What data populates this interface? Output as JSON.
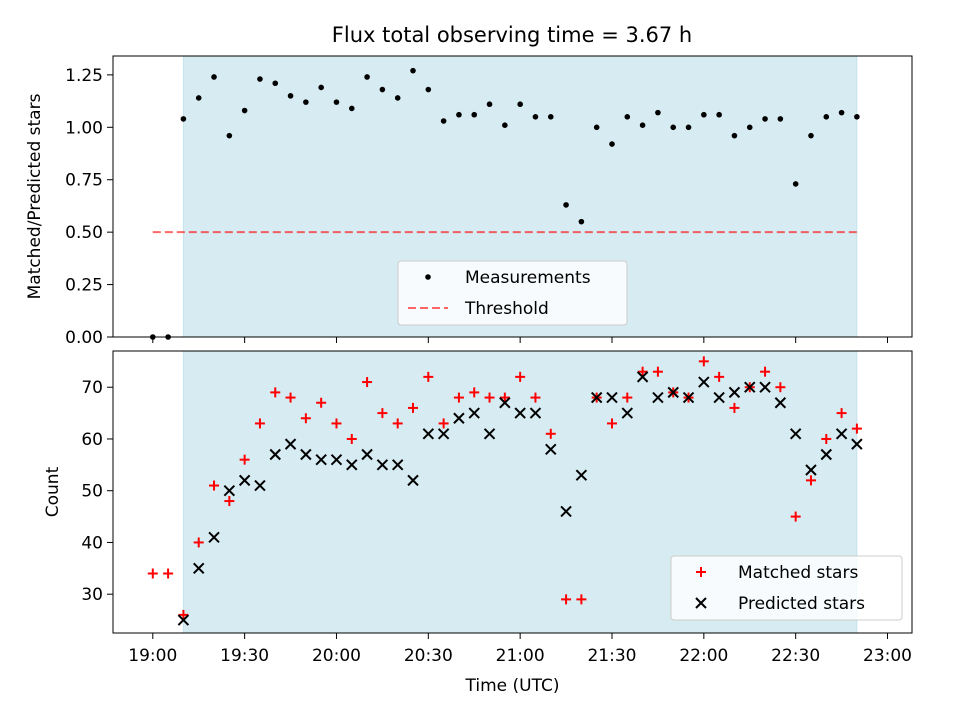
{
  "chart_data": [
    {
      "type": "scatter",
      "title": "Flux total observing time = 3.67 h",
      "xlabel": "",
      "ylabel": "Matched/Predicted stars",
      "ylim": [
        0.0,
        1.34
      ],
      "yticks": [
        "0.00",
        "0.25",
        "0.50",
        "0.75",
        "1.00",
        "1.25"
      ],
      "xlim_minutes": [
        1127,
        1388
      ],
      "x_tick_labels": [],
      "shaded_span": [
        "19:10",
        "22:50"
      ],
      "shade_color": "#add8e6",
      "series": [
        {
          "name": "Measurements",
          "color": "#000000",
          "x": [
            "19:00",
            "19:05",
            "19:10",
            "19:15",
            "19:20",
            "19:25",
            "19:30",
            "19:35",
            "19:40",
            "19:45",
            "19:50",
            "19:55",
            "20:00",
            "20:05",
            "20:10",
            "20:15",
            "20:20",
            "20:25",
            "20:30",
            "20:35",
            "20:40",
            "20:45",
            "20:50",
            "20:55",
            "21:00",
            "21:05",
            "21:10",
            "21:15",
            "21:20",
            "21:25",
            "21:30",
            "21:35",
            "21:40",
            "21:45",
            "21:50",
            "21:55",
            "22:00",
            "22:05",
            "22:10",
            "22:15",
            "22:20",
            "22:25",
            "22:30",
            "22:35",
            "22:40",
            "22:45",
            "22:50"
          ],
          "y": [
            0.0,
            0.0,
            1.04,
            1.14,
            1.24,
            0.96,
            1.08,
            1.23,
            1.21,
            1.15,
            1.12,
            1.19,
            1.12,
            1.09,
            1.24,
            1.18,
            1.14,
            1.27,
            1.18,
            1.03,
            1.06,
            1.06,
            1.11,
            1.01,
            1.11,
            1.05,
            1.05,
            0.63,
            0.55,
            1.0,
            0.92,
            1.05,
            1.01,
            1.07,
            1.0,
            1.0,
            1.06,
            1.06,
            0.96,
            1.0,
            1.04,
            1.04,
            0.73,
            0.96,
            1.05,
            1.07,
            1.05
          ]
        },
        {
          "name": "Threshold",
          "color": "#ff0000",
          "style": "dashed",
          "x": [
            "19:00",
            "22:50"
          ],
          "y": [
            0.5,
            0.5
          ]
        }
      ],
      "legend": "lower-center"
    },
    {
      "type": "scatter",
      "title": "",
      "xlabel": "Time (UTC)",
      "ylabel": "Count",
      "ylim": [
        22.5,
        77
      ],
      "yticks": [
        "30",
        "40",
        "50",
        "60",
        "70"
      ],
      "xlim_minutes": [
        1127,
        1388
      ],
      "x_tick_labels": [
        "19:00",
        "19:30",
        "20:00",
        "20:30",
        "21:00",
        "21:30",
        "22:00",
        "22:30",
        "23:00"
      ],
      "shaded_span": [
        "19:10",
        "22:50"
      ],
      "shade_color": "#add8e6",
      "series": [
        {
          "name": "Matched stars",
          "marker": "+",
          "color": "#ff0000",
          "x": [
            "19:00",
            "19:05",
            "19:10",
            "19:15",
            "19:20",
            "19:25",
            "19:30",
            "19:35",
            "19:40",
            "19:45",
            "19:50",
            "19:55",
            "20:00",
            "20:05",
            "20:10",
            "20:15",
            "20:20",
            "20:25",
            "20:30",
            "20:35",
            "20:40",
            "20:45",
            "20:50",
            "20:55",
            "21:00",
            "21:05",
            "21:10",
            "21:15",
            "21:20",
            "21:25",
            "21:30",
            "21:35",
            "21:40",
            "21:45",
            "21:50",
            "21:55",
            "22:00",
            "22:05",
            "22:10",
            "22:15",
            "22:20",
            "22:25",
            "22:30",
            "22:35",
            "22:40",
            "22:45",
            "22:50"
          ],
          "y": [
            34,
            34,
            26,
            40,
            51,
            48,
            56,
            63,
            69,
            68,
            64,
            67,
            63,
            60,
            71,
            65,
            63,
            66,
            72,
            63,
            68,
            69,
            68,
            68,
            72,
            68,
            61,
            29,
            29,
            68,
            63,
            68,
            73,
            73,
            69,
            68,
            75,
            72,
            66,
            70,
            73,
            70,
            45,
            52,
            60,
            65,
            62
          ]
        },
        {
          "name": "Predicted stars",
          "marker": "x",
          "color": "#000000",
          "x": [
            "19:10",
            "19:15",
            "19:20",
            "19:25",
            "19:30",
            "19:35",
            "19:40",
            "19:45",
            "19:50",
            "19:55",
            "20:00",
            "20:05",
            "20:10",
            "20:15",
            "20:20",
            "20:25",
            "20:30",
            "20:35",
            "20:40",
            "20:45",
            "20:50",
            "20:55",
            "21:00",
            "21:05",
            "21:10",
            "21:15",
            "21:20",
            "21:25",
            "21:30",
            "21:35",
            "21:40",
            "21:45",
            "21:50",
            "21:55",
            "22:00",
            "22:05",
            "22:10",
            "22:15",
            "22:20",
            "22:25",
            "22:30",
            "22:35",
            "22:40",
            "22:45",
            "22:50"
          ],
          "y": [
            25,
            35,
            41,
            50,
            52,
            51,
            57,
            59,
            57,
            56,
            56,
            55,
            57,
            55,
            55,
            52,
            61,
            61,
            64,
            65,
            61,
            67,
            65,
            65,
            58,
            46,
            53,
            68,
            68,
            65,
            72,
            68,
            69,
            68,
            71,
            68,
            69,
            70,
            70,
            67,
            61,
            54,
            57,
            61,
            59
          ]
        }
      ],
      "legend": "lower-right"
    }
  ]
}
